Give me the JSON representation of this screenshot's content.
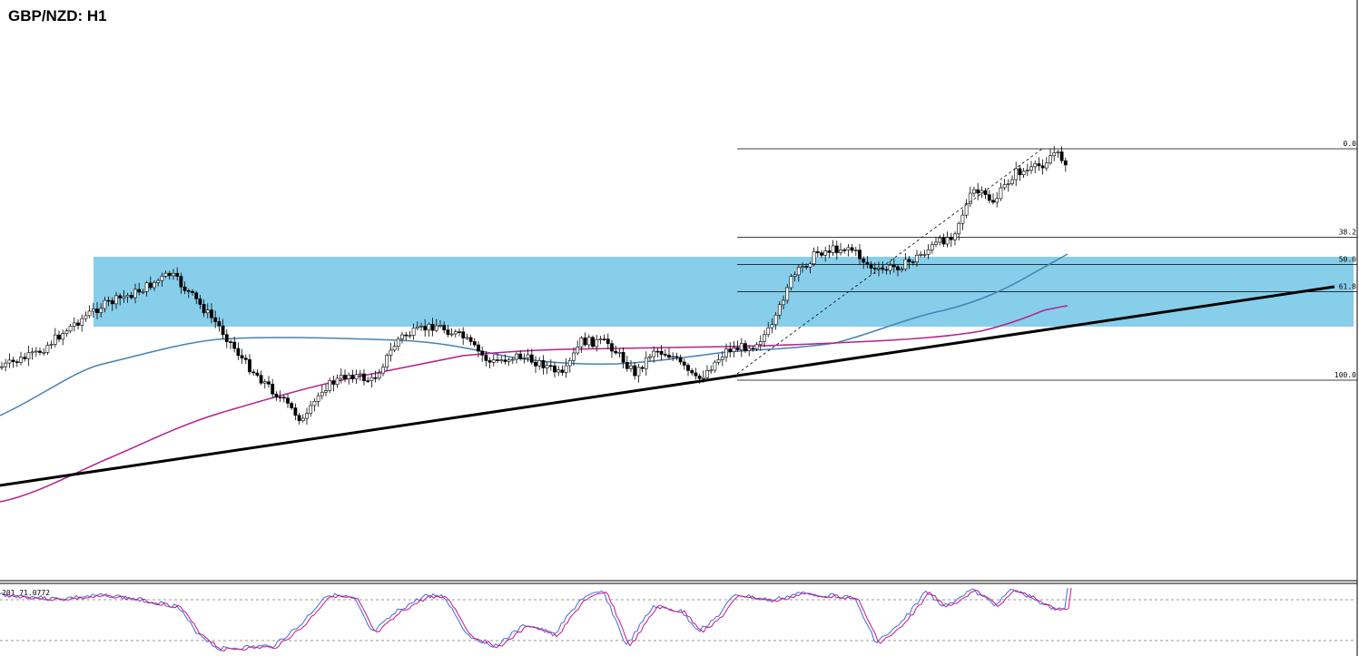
{
  "chart_data": {
    "type": "candlestick",
    "title": "GBP/NZD: H1",
    "fibonacci": {
      "levels": [
        {
          "label": "0.0",
          "ratio": 0.0
        },
        {
          "label": "38.2",
          "ratio": 0.382
        },
        {
          "label": "50.0",
          "ratio": 0.5
        },
        {
          "label": "61.8",
          "ratio": 0.618
        },
        {
          "label": "100.0",
          "ratio": 1.0
        }
      ]
    },
    "oscillator": {
      "label": "201 71.0772",
      "levels": [
        80,
        20
      ]
    },
    "colors": {
      "zone": "#87ceeb",
      "ma_fast": "#4682b4",
      "ma_slow": "#b5208e",
      "trendline": "#000000",
      "osc_main": "#4169e1",
      "osc_signal": "#c71585"
    }
  }
}
